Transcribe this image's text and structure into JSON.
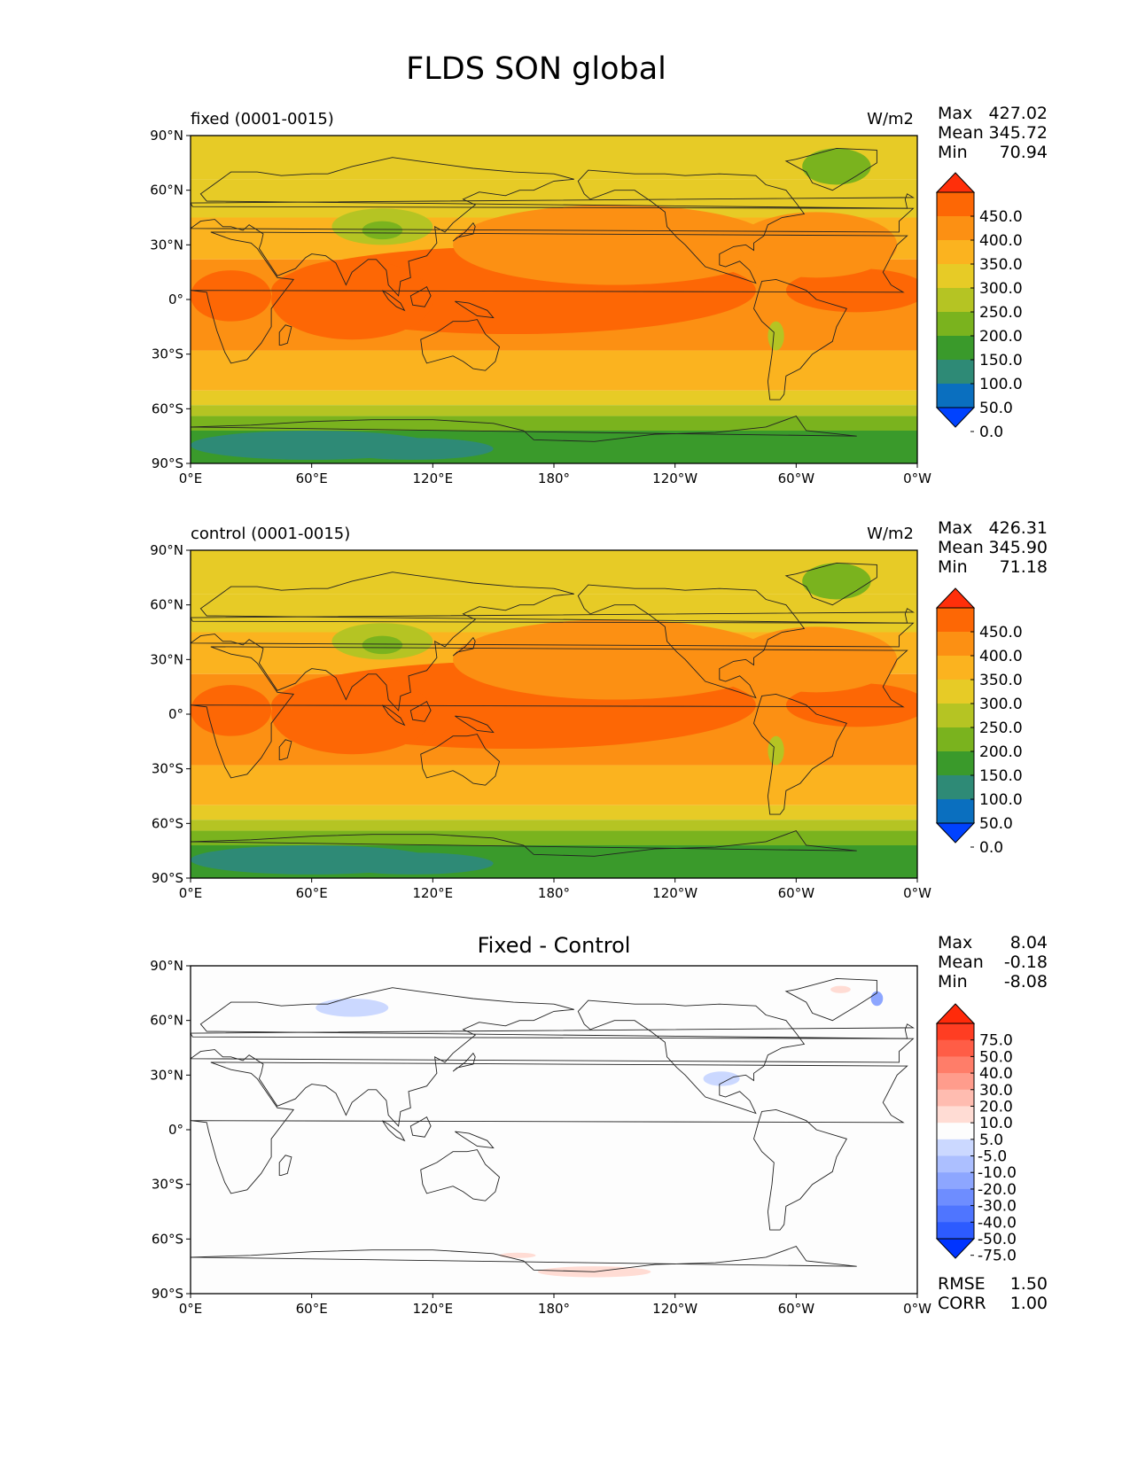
{
  "title": "FLDS SON global",
  "x_ticks": [
    "0°E",
    "60°E",
    "120°E",
    "180°",
    "120°W",
    "60°W",
    "0°W"
  ],
  "y_ticks": [
    "90°N",
    "60°N",
    "30°N",
    "0°",
    "30°S",
    "60°S",
    "90°S"
  ],
  "colors": {
    "field": [
      "#0042ff",
      "#0a6fbf",
      "#2e8a76",
      "#3a9a2b",
      "#7ab31e",
      "#b5c423",
      "#e7cb26",
      "#fbb31f",
      "#fc9013",
      "#fd6705",
      "#ff2f0a"
    ],
    "diff": [
      "#0034ff",
      "#2d5bff",
      "#4f75ff",
      "#6e8dff",
      "#8da6ff",
      "#acbfff",
      "#cbd8ff",
      "#fdfdfd",
      "#ffdcd4",
      "#ffbcb0",
      "#ff9c8c",
      "#ff7d69",
      "#ff5d46",
      "#ff3d22",
      "#ff2a0a"
    ]
  },
  "panels": [
    {
      "id": "fixed",
      "label": "fixed (0001-0015)",
      "units": "W/m2",
      "stats": {
        "Max": "427.02",
        "Mean": "345.72",
        "Min": "70.94"
      },
      "colorbar_labels": [
        "450.0",
        "400.0",
        "350.0",
        "300.0",
        "250.0",
        "200.0",
        "150.0",
        "100.0",
        "50.0",
        "0.0"
      ]
    },
    {
      "id": "control",
      "label": "control (0001-0015)",
      "units": "W/m2",
      "stats": {
        "Max": "426.31",
        "Mean": "345.90",
        "Min": "71.18"
      },
      "colorbar_labels": [
        "450.0",
        "400.0",
        "350.0",
        "300.0",
        "250.0",
        "200.0",
        "150.0",
        "100.0",
        "50.0",
        "0.0"
      ]
    },
    {
      "id": "diff",
      "label": "Fixed - Control",
      "stats": {
        "Max": "8.04",
        "Mean": "-0.18",
        "Min": "-8.08"
      },
      "colorbar_labels": [
        "75.0",
        "50.0",
        "40.0",
        "30.0",
        "20.0",
        "10.0",
        "5.0",
        "-5.0",
        "-10.0",
        "-20.0",
        "-30.0",
        "-40.0",
        "-50.0",
        "-75.0"
      ],
      "metrics": {
        "RMSE": "1.50",
        "CORR": "1.00"
      }
    }
  ]
}
